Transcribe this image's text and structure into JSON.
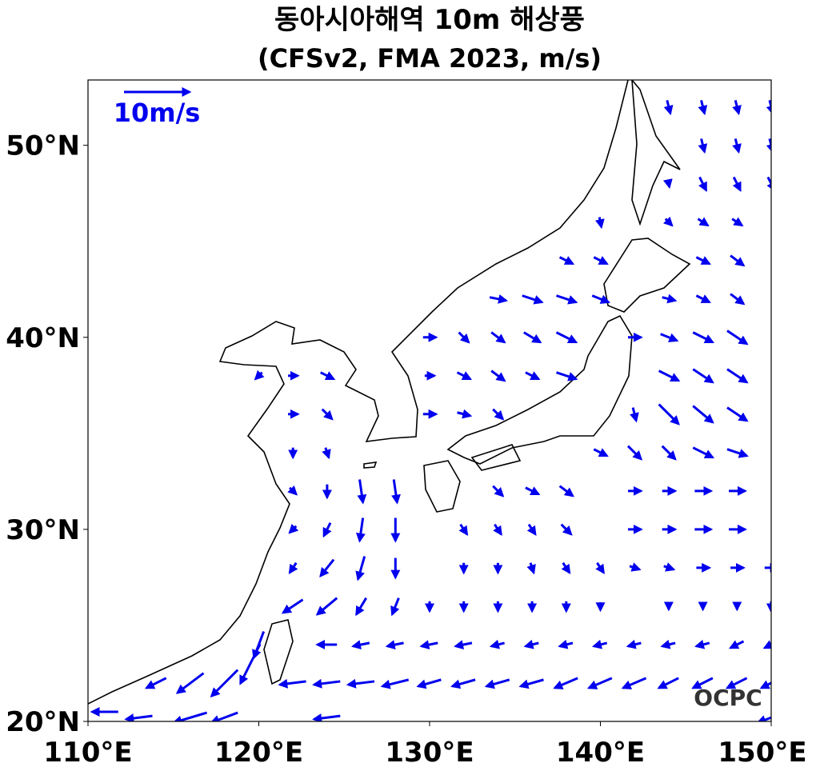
{
  "chart_data": {
    "type": "quiver",
    "title": "동아시아해역 10m 해상풍",
    "subtitle": "(CFSv2, FMA 2023, m/s)",
    "reference_label": "10m/s",
    "logo": "OCPC",
    "color": "#0000ee",
    "xlim": [
      110,
      150
    ],
    "ylim": [
      20,
      53.4
    ],
    "xticks": [
      {
        "value": 110,
        "label": "110°E"
      },
      {
        "value": 120,
        "label": "120°E"
      },
      {
        "value": 130,
        "label": "130°E"
      },
      {
        "value": 140,
        "label": "140°E"
      },
      {
        "value": 150,
        "label": "150°E"
      }
    ],
    "yticks": [
      {
        "value": 20,
        "label": "20°N"
      },
      {
        "value": 30,
        "label": "30°N"
      },
      {
        "value": 40,
        "label": "40°N"
      },
      {
        "value": 50,
        "label": "50°N"
      }
    ],
    "vectors": [
      [
        144,
        52,
        0.5,
        -2
      ],
      [
        146,
        52,
        0.5,
        -2
      ],
      [
        148,
        52,
        0.5,
        -2
      ],
      [
        150,
        52,
        0.5,
        -2
      ],
      [
        146,
        50,
        0.5,
        -2
      ],
      [
        148,
        50,
        0.5,
        -2
      ],
      [
        150,
        50,
        0.5,
        -2
      ],
      [
        144,
        48,
        0.2,
        -1
      ],
      [
        146,
        48,
        1,
        -2
      ],
      [
        148,
        48,
        1,
        -2
      ],
      [
        150,
        48,
        1,
        -2
      ],
      [
        140,
        46,
        0.3,
        -1.5
      ],
      [
        144,
        46,
        1,
        -1
      ],
      [
        146,
        46,
        1.5,
        -1
      ],
      [
        148,
        46,
        1.5,
        -1
      ],
      [
        138,
        44,
        2,
        -1
      ],
      [
        140,
        44,
        2,
        -1
      ],
      [
        146,
        44,
        2,
        -1
      ],
      [
        148,
        44,
        2,
        -1.5
      ],
      [
        134,
        42,
        2.5,
        -0.5
      ],
      [
        136,
        42,
        3,
        -1
      ],
      [
        138,
        42,
        3,
        -1
      ],
      [
        140,
        42,
        2.5,
        -1
      ],
      [
        144,
        42,
        2,
        -0.5
      ],
      [
        146,
        42,
        2,
        -1
      ],
      [
        148,
        42,
        2,
        -1.5
      ],
      [
        130,
        40,
        2,
        0
      ],
      [
        132,
        40,
        1.5,
        -1.5
      ],
      [
        134,
        40,
        2,
        -1.5
      ],
      [
        136,
        40,
        2.5,
        -1.5
      ],
      [
        138,
        40,
        3,
        -1.5
      ],
      [
        142,
        40,
        2,
        0
      ],
      [
        144,
        40,
        2.5,
        -1
      ],
      [
        146,
        40,
        3,
        -1.5
      ],
      [
        148,
        40,
        3,
        -2
      ],
      [
        120,
        38,
        -1,
        -1
      ],
      [
        122,
        38,
        1.5,
        0
      ],
      [
        124,
        38,
        2,
        -1
      ],
      [
        130,
        38,
        1.5,
        0
      ],
      [
        132,
        38,
        2,
        -1
      ],
      [
        134,
        38,
        2,
        -1.5
      ],
      [
        136,
        38,
        2,
        -1
      ],
      [
        138,
        38,
        3,
        -1
      ],
      [
        144,
        38,
        3,
        -1.5
      ],
      [
        146,
        38,
        3,
        -2
      ],
      [
        148,
        38,
        3,
        -2
      ],
      [
        122,
        36,
        1.5,
        0
      ],
      [
        124,
        36,
        1.5,
        -1.5
      ],
      [
        130,
        36,
        2,
        0
      ],
      [
        132,
        36,
        2,
        -0.5
      ],
      [
        134,
        36,
        1.5,
        -1.5
      ],
      [
        142,
        36,
        0.5,
        -2
      ],
      [
        144,
        36,
        3,
        -3
      ],
      [
        146,
        36,
        3,
        -2.5
      ],
      [
        148,
        36,
        3,
        -2
      ],
      [
        122,
        34,
        0,
        -1.5
      ],
      [
        124,
        34,
        0.5,
        -1.5
      ],
      [
        140,
        34,
        2,
        -1
      ],
      [
        142,
        34,
        2,
        -2
      ],
      [
        144,
        34,
        2,
        -2
      ],
      [
        146,
        34,
        3,
        -1.5
      ],
      [
        148,
        34,
        3,
        -1
      ],
      [
        122,
        32,
        1,
        -1
      ],
      [
        124,
        32,
        0,
        -2
      ],
      [
        126,
        32,
        0.5,
        -3.5
      ],
      [
        128,
        32,
        0.5,
        -3.5
      ],
      [
        134,
        32,
        1.5,
        -1.5
      ],
      [
        136,
        32,
        2,
        -1
      ],
      [
        138,
        32,
        2,
        -1.5
      ],
      [
        142,
        32,
        2,
        0
      ],
      [
        144,
        32,
        2,
        0
      ],
      [
        146,
        32,
        2.5,
        0
      ],
      [
        148,
        32,
        2.5,
        0
      ],
      [
        122,
        30,
        -1,
        -1
      ],
      [
        124,
        30,
        -1,
        -2
      ],
      [
        126,
        30,
        -0.5,
        -3.5
      ],
      [
        128,
        30,
        0,
        -3.5
      ],
      [
        132,
        30,
        1,
        -1.5
      ],
      [
        134,
        30,
        1,
        -1.5
      ],
      [
        136,
        30,
        1,
        -1.5
      ],
      [
        138,
        30,
        1.5,
        -1.5
      ],
      [
        142,
        30,
        2,
        0
      ],
      [
        144,
        30,
        2,
        0
      ],
      [
        146,
        30,
        2.5,
        0
      ],
      [
        148,
        30,
        2.5,
        0
      ],
      [
        122,
        28,
        -1,
        -1.5
      ],
      [
        124,
        28,
        -2,
        -2.5
      ],
      [
        126,
        28,
        -1,
        -3.5
      ],
      [
        128,
        28,
        0,
        -3
      ],
      [
        132,
        28,
        0,
        -1.5
      ],
      [
        134,
        28,
        0,
        -1.5
      ],
      [
        136,
        28,
        0.5,
        -1.5
      ],
      [
        138,
        28,
        1,
        -1.5
      ],
      [
        140,
        28,
        1,
        -1.5
      ],
      [
        142,
        28,
        1.5,
        -0.5
      ],
      [
        144,
        28,
        1.5,
        -0.5
      ],
      [
        146,
        28,
        2,
        0
      ],
      [
        148,
        28,
        2,
        0
      ],
      [
        150,
        28,
        2,
        0
      ],
      [
        122,
        26,
        -3,
        -2
      ],
      [
        124,
        26,
        -3,
        -2.5
      ],
      [
        126,
        26,
        -1.5,
        -2.5
      ],
      [
        128,
        26,
        -1,
        -2.5
      ],
      [
        130,
        26,
        0,
        -1.5
      ],
      [
        132,
        26,
        0,
        -1.5
      ],
      [
        134,
        26,
        0,
        -1.5
      ],
      [
        136,
        26,
        0,
        -1.5
      ],
      [
        138,
        26,
        0,
        -1.5
      ],
      [
        140,
        26,
        0,
        -1.2
      ],
      [
        144,
        26,
        0,
        -1
      ],
      [
        146,
        26,
        0,
        -1
      ],
      [
        148,
        26,
        0,
        -1
      ],
      [
        150,
        26,
        0,
        -1.5
      ],
      [
        119.5,
        23,
        -3,
        -6
      ],
      [
        120,
        24,
        -1.5,
        -4
      ],
      [
        124,
        24,
        -3,
        0
      ],
      [
        126,
        24,
        -2.5,
        -0.5
      ],
      [
        128,
        24,
        -2.5,
        -0.5
      ],
      [
        130,
        24,
        -2.5,
        -0.5
      ],
      [
        132,
        24,
        -2.5,
        -0.5
      ],
      [
        134,
        24,
        -2,
        -0.5
      ],
      [
        136,
        24,
        -2,
        -0.5
      ],
      [
        138,
        24,
        -2,
        -0.5
      ],
      [
        140,
        24,
        -2,
        -0.5
      ],
      [
        142,
        24,
        -2,
        -0.5
      ],
      [
        144,
        24,
        -2,
        -0.5
      ],
      [
        146,
        24,
        -2,
        -0.5
      ],
      [
        148,
        24,
        -2,
        -1
      ],
      [
        150,
        24,
        -2,
        -1
      ],
      [
        114,
        22,
        -3,
        -1.5
      ],
      [
        116,
        22,
        -4,
        -3
      ],
      [
        118,
        22,
        -4,
        -4
      ],
      [
        122,
        22,
        -4,
        -0.5
      ],
      [
        124,
        22,
        -4,
        -0.5
      ],
      [
        126,
        22,
        -4,
        -0.5
      ],
      [
        128,
        22,
        -4,
        -1
      ],
      [
        130,
        22,
        -3.5,
        -1
      ],
      [
        132,
        22,
        -3.5,
        -1
      ],
      [
        134,
        22,
        -3.5,
        -1
      ],
      [
        136,
        22,
        -3.5,
        -1
      ],
      [
        138,
        22,
        -3.5,
        -1.5
      ],
      [
        140,
        22,
        -3.5,
        -1.5
      ],
      [
        142,
        22,
        -3.5,
        -1.5
      ],
      [
        144,
        22,
        -3,
        -1.5
      ],
      [
        146,
        22,
        -3,
        -1.5
      ],
      [
        148,
        22,
        -3,
        -1.5
      ],
      [
        150,
        22,
        -3,
        -1.5
      ],
      [
        111,
        20.5,
        -4,
        0
      ],
      [
        113,
        20.2,
        -4,
        -0.5
      ],
      [
        116,
        20.2,
        -5,
        -1.5
      ],
      [
        118,
        20.2,
        -4,
        -1.5
      ],
      [
        124,
        20.2,
        -4,
        -0.5
      ],
      [
        150,
        20.2,
        -4,
        -1.5
      ]
    ]
  }
}
